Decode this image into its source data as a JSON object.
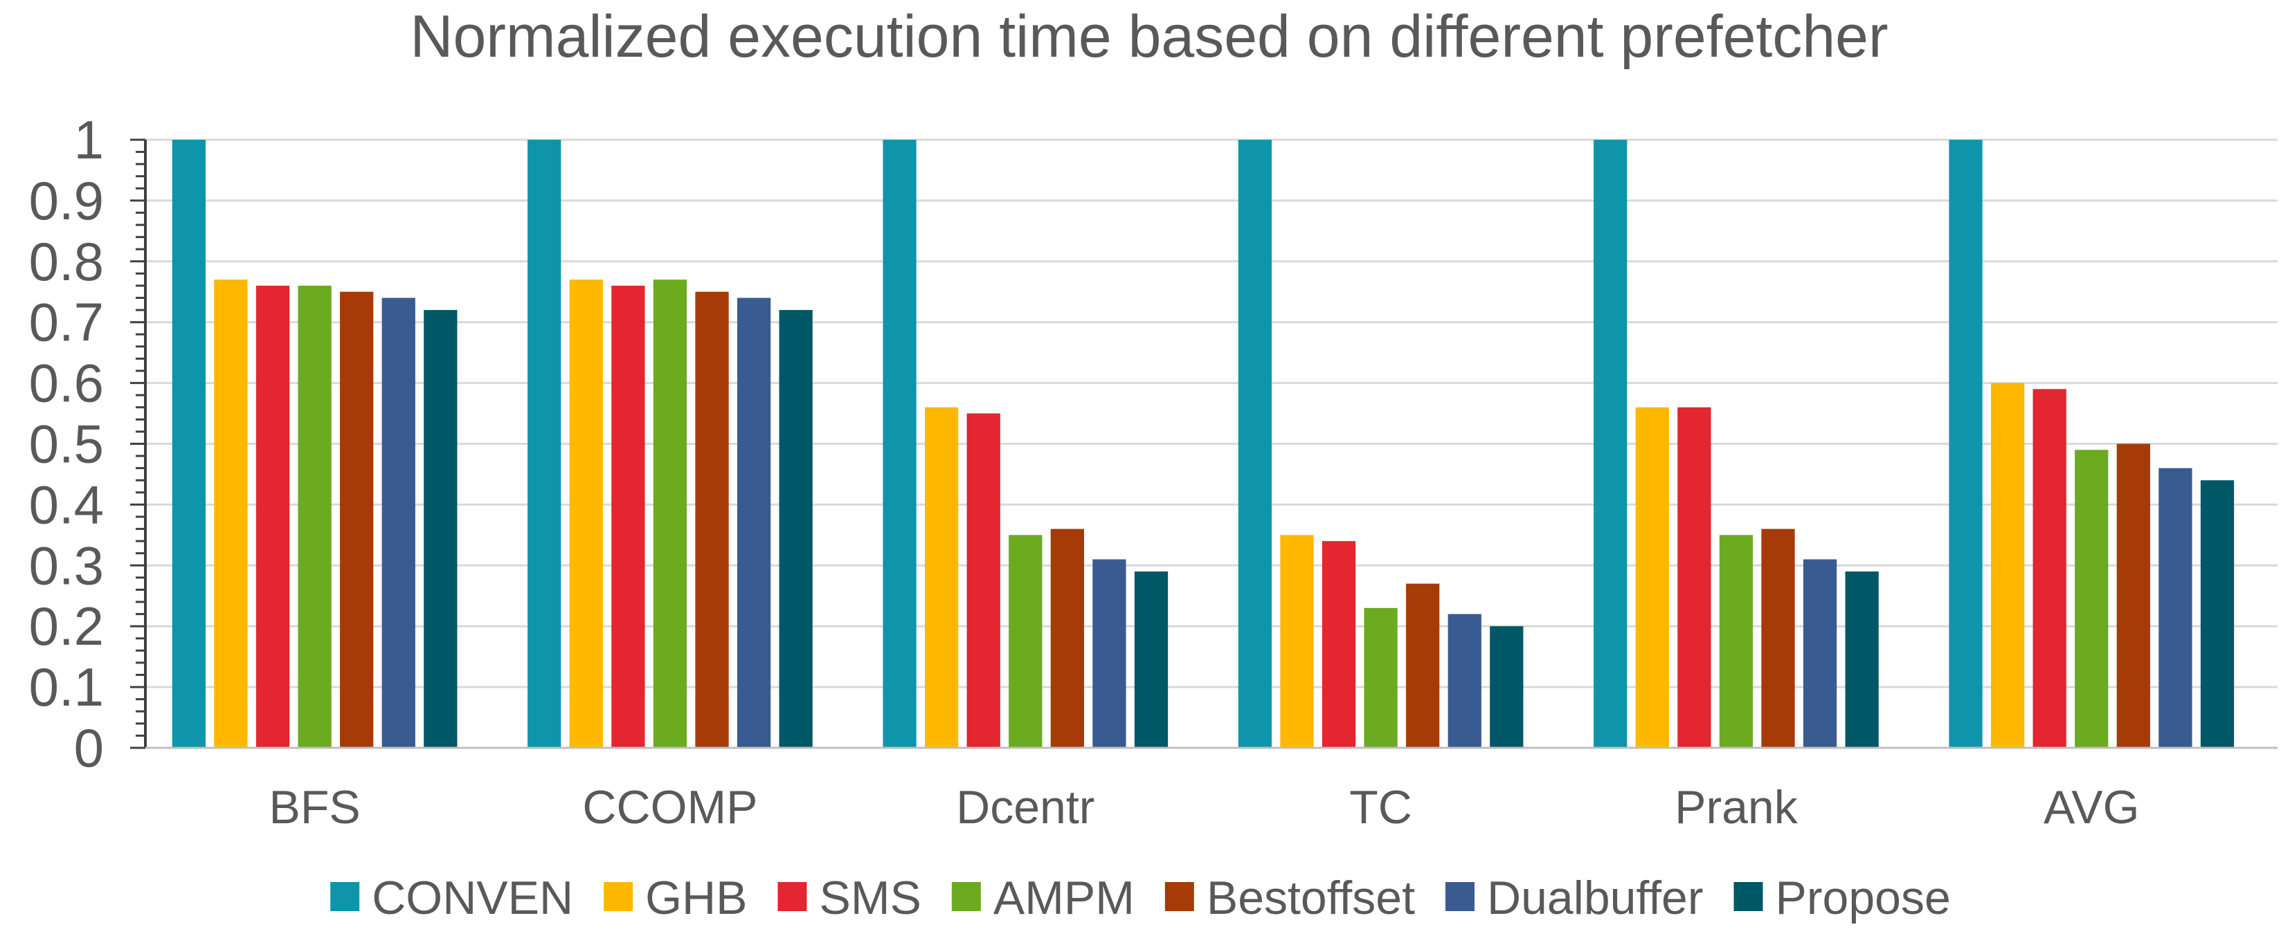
{
  "chart_data": {
    "type": "bar",
    "title": "Normalized execution time based on different prefetcher",
    "xlabel": "",
    "ylabel": "",
    "ylim": [
      0,
      1
    ],
    "yticks": [
      "0",
      "0.1",
      "0.2",
      "0.3",
      "0.4",
      "0.5",
      "0.6",
      "0.7",
      "0.8",
      "0.9",
      "1"
    ],
    "categories": [
      "BFS",
      "CCOMP",
      "Dcentr",
      "TC",
      "Prank",
      "AVG"
    ],
    "legend_position": "bottom",
    "series": [
      {
        "name": "CONVEN",
        "color": "#0E95AC",
        "values": [
          1,
          1,
          1,
          1,
          1,
          1
        ]
      },
      {
        "name": "GHB",
        "color": "#FFB800",
        "values": [
          0.77,
          0.77,
          0.56,
          0.35,
          0.56,
          0.6
        ]
      },
      {
        "name": "SMS",
        "color": "#E3262F",
        "values": [
          0.76,
          0.76,
          0.55,
          0.34,
          0.56,
          0.59
        ]
      },
      {
        "name": "AMPM",
        "color": "#6CAA1F",
        "values": [
          0.76,
          0.77,
          0.35,
          0.23,
          0.35,
          0.49
        ]
      },
      {
        "name": "Bestoffset",
        "color": "#A63B08",
        "values": [
          0.75,
          0.75,
          0.36,
          0.27,
          0.36,
          0.5
        ]
      },
      {
        "name": "Dualbuffer",
        "color": "#3A5A92",
        "values": [
          0.74,
          0.74,
          0.31,
          0.22,
          0.31,
          0.46
        ]
      },
      {
        "name": "Propose",
        "color": "#005866",
        "values": [
          0.72,
          0.72,
          0.29,
          0.2,
          0.29,
          0.44
        ]
      }
    ],
    "grid": true
  }
}
